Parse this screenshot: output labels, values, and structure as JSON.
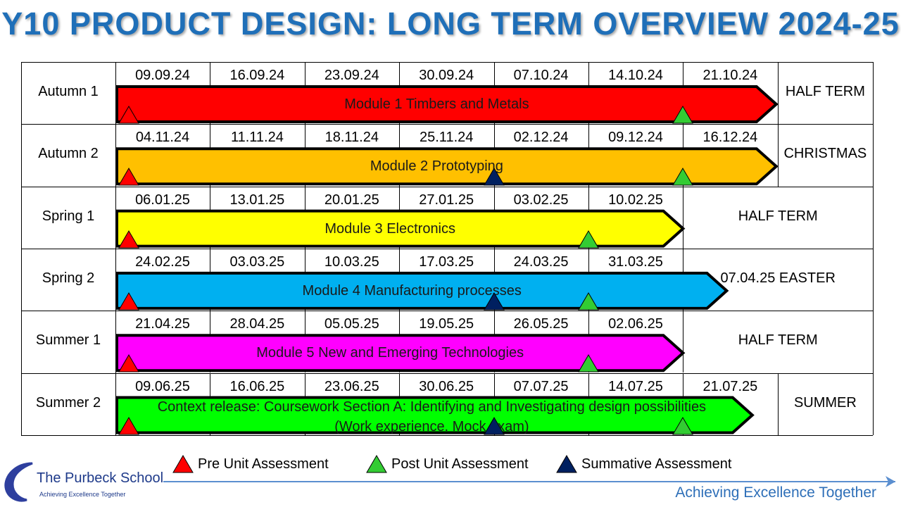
{
  "title": "Y10 PRODUCT DESIGN: LONG TERM OVERVIEW 2024-25",
  "rows": [
    {
      "label": "Autumn 1",
      "dates": [
        "09.09.24",
        "16.09.24",
        "23.09.24",
        "30.09.24",
        "07.10.24",
        "14.10.24",
        "21.10.24"
      ],
      "module": "Module 1 Timbers and Metals",
      "module2": "",
      "color": "#ff0000",
      "right": "HALF TERM",
      "pre": true,
      "summative": false,
      "post": true
    },
    {
      "label": "Autumn 2",
      "dates": [
        "04.11.24",
        "11.11.24",
        "18.11.24",
        "25.11.24",
        "02.12.24",
        "09.12.24",
        "16.12.24"
      ],
      "module": "Module 2 Prototyping",
      "module2": "",
      "color": "#ffc000",
      "right": "CHRISTMAS",
      "pre": true,
      "summative": true,
      "post": true
    },
    {
      "label": "Spring 1",
      "dates": [
        "06.01.25",
        "13.01.25",
        "20.01.25",
        "27.01.25",
        "03.02.25",
        "10.02.25"
      ],
      "module": "Module 3 Electronics",
      "module2": "",
      "color": "#ffff00",
      "right": "HALF TERM",
      "pre": true,
      "summative": false,
      "post": true
    },
    {
      "label": "Spring 2",
      "dates": [
        "24.02.25",
        "03.03.25",
        "10.03.25",
        "17.03.25",
        "24.03.25",
        "31.03.25"
      ],
      "module": "Module 4 Manufacturing processes",
      "module2": "",
      "color": "#00b0f0",
      "right": "07.04.25 EASTER",
      "pre": true,
      "summative": true,
      "post": true
    },
    {
      "label": "Summer 1",
      "dates": [
        "21.04.25",
        "28.04.25",
        "05.05.25",
        "19.05.25",
        "26.05.25",
        "02.06.25"
      ],
      "module": "Module 5 New and Emerging Technologies",
      "module2": "",
      "color": "#ff00ff",
      "right": "HALF TERM",
      "pre": true,
      "summative": false,
      "post": true
    },
    {
      "label": "Summer 2",
      "dates": [
        "09.06.25",
        "16.06.25",
        "23.06.25",
        "30.06.25",
        "07.07.25",
        "14.07.25",
        "21.07.25"
      ],
      "module": "Context release: Coursework Section A: Identifying and Investigating design possibilities",
      "module2": "(Work experience. Mock exam)",
      "color": "#00ff00",
      "right": "SUMMER",
      "pre": true,
      "summative": true,
      "post": true
    }
  ],
  "legend": [
    {
      "label": "Pre Unit Assessment",
      "color": "#ff0000"
    },
    {
      "label": "Post Unit Assessment",
      "color": "#33cc33"
    },
    {
      "label": "Summative Assessment",
      "color": "#002060"
    }
  ],
  "footer": {
    "school_name": "The Purbeck School",
    "school_tagline": "Achieving Excellence Together",
    "motto": "Achieving Excellence Together"
  }
}
